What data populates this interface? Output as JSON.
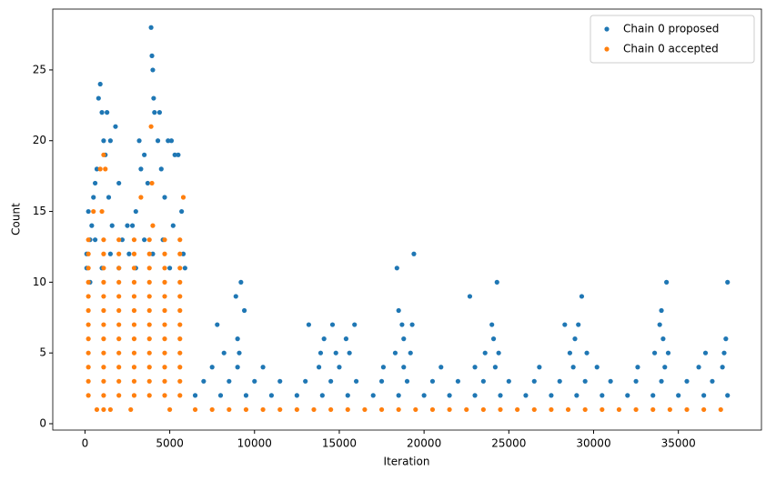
{
  "chart_data": {
    "type": "scatter",
    "x_label": "Iteration",
    "y_label": "Count",
    "xlim": [
      -1900,
      39900
    ],
    "xticks": [
      0,
      5000,
      10000,
      15000,
      20000,
      25000,
      30000,
      35000
    ],
    "ylim": [
      -0.45,
      29.3
    ],
    "yticks": [
      0,
      5,
      10,
      15,
      20,
      25
    ],
    "legend": "upper right",
    "series": [
      {
        "name": "Chain 0 proposed",
        "color": "#1f77b4",
        "x": [
          100,
          200,
          300,
          400,
          500,
          600,
          700,
          800,
          900,
          1000,
          1100,
          1200,
          1300,
          1400,
          1500,
          1600,
          1800,
          2000,
          2200,
          2500,
          2800,
          3000,
          3200,
          3300,
          3500,
          3700,
          3900,
          3950,
          4000,
          4050,
          4100,
          4300,
          4400,
          4500,
          4700,
          4900,
          5100,
          5300,
          5500,
          5700,
          5900,
          100,
          300,
          1000,
          2000,
          3000,
          4000,
          5000,
          5800,
          600,
          2600,
          4600,
          5200,
          1500,
          3500,
          6500,
          8000,
          9500,
          11000,
          12500,
          14000,
          15500,
          17000,
          18500,
          20000,
          21500,
          23000,
          24500,
          26000,
          27500,
          29000,
          30500,
          32000,
          33500,
          35000,
          36500,
          37900,
          7000,
          8500,
          10000,
          11500,
          13000,
          14500,
          16000,
          17500,
          19000,
          20500,
          22000,
          23500,
          25000,
          26500,
          28000,
          29500,
          31000,
          32500,
          34000,
          35500,
          37000,
          7500,
          9000,
          10500,
          13800,
          15000,
          17600,
          18800,
          21000,
          23000,
          24200,
          26800,
          28800,
          30200,
          32600,
          34200,
          36200,
          37600,
          8200,
          9100,
          13900,
          14800,
          15600,
          18300,
          19200,
          23600,
          24400,
          28600,
          29600,
          33600,
          34400,
          36600,
          37700,
          9000,
          14100,
          15400,
          18800,
          24100,
          28900,
          34100,
          37800,
          7800,
          13200,
          14600,
          15900,
          18700,
          19300,
          24000,
          28300,
          29100,
          33900,
          9200,
          8900,
          18400,
          19400,
          22700,
          24300,
          29300,
          34300,
          37900,
          34000,
          9400,
          18500
        ],
        "values": [
          12,
          15,
          13,
          14,
          16,
          17,
          18,
          23,
          24,
          22,
          20,
          19,
          22,
          16,
          20,
          14,
          21,
          17,
          13,
          14,
          14,
          15,
          20,
          18,
          19,
          17,
          28,
          26,
          25,
          23,
          22,
          20,
          22,
          18,
          16,
          20,
          20,
          19,
          19,
          15,
          11,
          11,
          10,
          11,
          11,
          11,
          12,
          11,
          12,
          13,
          12,
          13,
          14,
          12,
          13,
          2,
          2,
          2,
          2,
          2,
          2,
          2,
          2,
          2,
          2,
          2,
          2,
          2,
          2,
          2,
          2,
          2,
          2,
          2,
          2,
          2,
          2,
          3,
          3,
          3,
          3,
          3,
          3,
          3,
          3,
          3,
          3,
          3,
          3,
          3,
          3,
          3,
          3,
          3,
          3,
          3,
          3,
          3,
          4,
          4,
          4,
          4,
          4,
          4,
          4,
          4,
          4,
          4,
          4,
          4,
          4,
          4,
          4,
          4,
          4,
          5,
          5,
          5,
          5,
          5,
          5,
          5,
          5,
          5,
          5,
          5,
          5,
          5,
          5,
          5,
          6,
          6,
          6,
          6,
          6,
          6,
          6,
          6,
          7,
          7,
          7,
          7,
          7,
          7,
          7,
          7,
          7,
          7,
          10,
          9,
          11,
          12,
          9,
          10,
          9,
          10,
          10,
          8,
          8,
          8
        ]
      },
      {
        "name": "Chain 0 accepted",
        "color": "#ff7f0e",
        "x": [
          200,
          1100,
          2000,
          2900,
          3800,
          4700,
          5600,
          200,
          1100,
          2000,
          2900,
          3800,
          4700,
          5600,
          200,
          1100,
          2000,
          2900,
          3800,
          4700,
          5600,
          200,
          1100,
          2000,
          2900,
          3800,
          4700,
          5600,
          200,
          1100,
          2000,
          2900,
          3800,
          4700,
          5600,
          200,
          1100,
          2000,
          2900,
          3800,
          4700,
          5600,
          200,
          1100,
          2000,
          2900,
          3800,
          4700,
          5600,
          200,
          1100,
          2000,
          2900,
          3800,
          4700,
          5600,
          200,
          1100,
          2000,
          2900,
          3800,
          4700,
          5600,
          200,
          1100,
          2000,
          2900,
          3800,
          4700,
          5600,
          200,
          1100,
          2000,
          2900,
          3800,
          4700,
          5600,
          200,
          1100,
          2000,
          2900,
          3800,
          4700,
          5600,
          700,
          1100,
          1500,
          2700,
          5000,
          3900,
          3950,
          1100,
          1200,
          900,
          3300,
          5800,
          1000,
          500,
          4000,
          6500,
          7500,
          8500,
          9500,
          10500,
          11500,
          12500,
          13500,
          14500,
          15500,
          16500,
          17500,
          18500,
          19500,
          20500,
          21500,
          22500,
          23500,
          24500,
          25500,
          26500,
          27500,
          28500,
          29500,
          30500,
          31500,
          32500,
          33500,
          34500,
          35500,
          36500,
          37500
        ],
        "values": [
          2,
          2,
          2,
          2,
          2,
          2,
          2,
          3,
          3,
          3,
          3,
          3,
          3,
          3,
          4,
          4,
          4,
          4,
          4,
          4,
          4,
          5,
          5,
          5,
          5,
          5,
          5,
          5,
          6,
          6,
          6,
          6,
          6,
          6,
          6,
          7,
          7,
          7,
          7,
          7,
          7,
          7,
          8,
          8,
          8,
          8,
          8,
          8,
          8,
          9,
          9,
          9,
          9,
          9,
          9,
          9,
          10,
          10,
          10,
          10,
          10,
          10,
          10,
          11,
          11,
          11,
          11,
          11,
          11,
          11,
          12,
          12,
          12,
          12,
          12,
          12,
          12,
          13,
          13,
          13,
          13,
          13,
          13,
          13,
          1,
          1,
          1,
          1,
          1,
          21,
          17,
          19,
          18,
          18,
          16,
          16,
          15,
          15,
          14,
          1,
          1,
          1,
          1,
          1,
          1,
          1,
          1,
          1,
          1,
          1,
          1,
          1,
          1,
          1,
          1,
          1,
          1,
          1,
          1,
          1,
          1,
          1,
          1,
          1,
          1,
          1,
          1,
          1,
          1,
          1,
          1
        ]
      }
    ]
  }
}
